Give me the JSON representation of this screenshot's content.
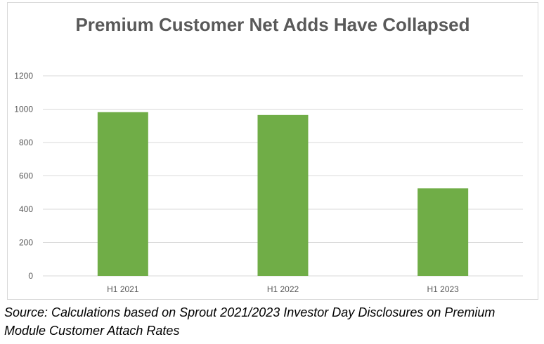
{
  "chart_data": {
    "type": "bar",
    "title": "Premium Customer Net Adds Have Collapsed",
    "categories": [
      "H1 2021",
      "H1 2022",
      "H1 2023"
    ],
    "series": [
      {
        "values": [
          982,
          965,
          525
        ]
      }
    ],
    "ylim": [
      0,
      1200
    ],
    "yticks": [
      0,
      200,
      400,
      600,
      800,
      1000,
      1200
    ],
    "grid": true,
    "legend": "none",
    "colors": {
      "bar": "#70ad47",
      "grid": "#d9d9d9",
      "tick_text": "#595959"
    }
  },
  "source_note": "Source: Calculations based on Sprout 2021/2023 Investor Day Disclosures on Premium Module Customer Attach Rates"
}
